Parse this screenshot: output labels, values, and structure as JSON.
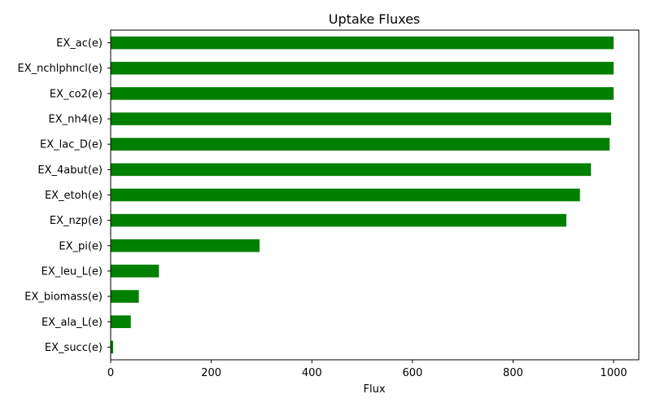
{
  "chart_data": {
    "type": "bar",
    "orientation": "horizontal",
    "title": "Uptake Fluxes",
    "xlabel": "Flux",
    "ylabel": "",
    "xlim": [
      0,
      1050
    ],
    "xticks": [
      0,
      200,
      400,
      600,
      800,
      1000
    ],
    "grid": false,
    "legend": "none",
    "bar_color": "#008000",
    "categories": [
      "EX_ac(e)",
      "EX_nchlphncl(e)",
      "EX_co2(e)",
      "EX_nh4(e)",
      "EX_lac_D(e)",
      "EX_4abut(e)",
      "EX_etoh(e)",
      "EX_nzp(e)",
      "EX_pi(e)",
      "EX_leu_L(e)",
      "EX_biomass(e)",
      "EX_ala_L(e)",
      "EX_succ(e)"
    ],
    "values": [
      1000,
      1000,
      1000,
      995,
      992,
      955,
      933,
      906,
      296,
      96,
      56,
      40,
      5
    ]
  }
}
